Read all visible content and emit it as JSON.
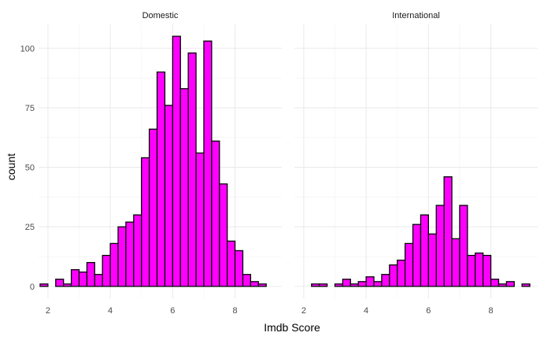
{
  "chart_data": {
    "type": "bar",
    "subtype": "faceted-histogram",
    "xlabel": "Imdb Score",
    "ylabel": "count",
    "xlim": [
      1.7,
      9.5
    ],
    "ylim": [
      -5,
      110
    ],
    "x_ticks": [
      2,
      4,
      6,
      8
    ],
    "y_ticks": [
      0,
      25,
      50,
      75,
      100
    ],
    "bin_width": 0.25,
    "grid": true,
    "fill_color": "#ff00ff",
    "outline_color": "#000000",
    "panels": [
      {
        "label": "Domestic",
        "bins": [
          {
            "x": 1.875,
            "count": 1
          },
          {
            "x": 2.125,
            "count": 0
          },
          {
            "x": 2.375,
            "count": 3
          },
          {
            "x": 2.625,
            "count": 1
          },
          {
            "x": 2.875,
            "count": 7
          },
          {
            "x": 3.125,
            "count": 6
          },
          {
            "x": 3.375,
            "count": 10
          },
          {
            "x": 3.625,
            "count": 5
          },
          {
            "x": 3.875,
            "count": 13
          },
          {
            "x": 4.125,
            "count": 18
          },
          {
            "x": 4.375,
            "count": 25
          },
          {
            "x": 4.625,
            "count": 27
          },
          {
            "x": 4.875,
            "count": 30
          },
          {
            "x": 5.125,
            "count": 54
          },
          {
            "x": 5.375,
            "count": 66
          },
          {
            "x": 5.625,
            "count": 90
          },
          {
            "x": 5.875,
            "count": 76
          },
          {
            "x": 6.125,
            "count": 105
          },
          {
            "x": 6.375,
            "count": 83
          },
          {
            "x": 6.625,
            "count": 98
          },
          {
            "x": 6.875,
            "count": 56
          },
          {
            "x": 7.125,
            "count": 103
          },
          {
            "x": 7.375,
            "count": 61
          },
          {
            "x": 7.625,
            "count": 43
          },
          {
            "x": 7.875,
            "count": 19
          },
          {
            "x": 8.125,
            "count": 15
          },
          {
            "x": 8.375,
            "count": 5
          },
          {
            "x": 8.625,
            "count": 2
          },
          {
            "x": 8.875,
            "count": 1
          },
          {
            "x": 9.125,
            "count": 0
          }
        ]
      },
      {
        "label": "International",
        "bins": [
          {
            "x": 2.125,
            "count": 0
          },
          {
            "x": 2.375,
            "count": 1
          },
          {
            "x": 2.625,
            "count": 1
          },
          {
            "x": 2.875,
            "count": 0
          },
          {
            "x": 3.125,
            "count": 1
          },
          {
            "x": 3.375,
            "count": 3
          },
          {
            "x": 3.625,
            "count": 1
          },
          {
            "x": 3.875,
            "count": 2
          },
          {
            "x": 4.125,
            "count": 4
          },
          {
            "x": 4.375,
            "count": 2
          },
          {
            "x": 4.625,
            "count": 5
          },
          {
            "x": 4.875,
            "count": 9
          },
          {
            "x": 5.125,
            "count": 11
          },
          {
            "x": 5.375,
            "count": 18
          },
          {
            "x": 5.625,
            "count": 26
          },
          {
            "x": 5.875,
            "count": 30
          },
          {
            "x": 6.125,
            "count": 22
          },
          {
            "x": 6.375,
            "count": 34
          },
          {
            "x": 6.625,
            "count": 46
          },
          {
            "x": 6.875,
            "count": 20
          },
          {
            "x": 7.125,
            "count": 34
          },
          {
            "x": 7.375,
            "count": 13
          },
          {
            "x": 7.625,
            "count": 14
          },
          {
            "x": 7.875,
            "count": 13
          },
          {
            "x": 8.125,
            "count": 3
          },
          {
            "x": 8.375,
            "count": 1
          },
          {
            "x": 8.625,
            "count": 2
          },
          {
            "x": 8.875,
            "count": 0
          },
          {
            "x": 9.125,
            "count": 1
          }
        ]
      }
    ]
  }
}
